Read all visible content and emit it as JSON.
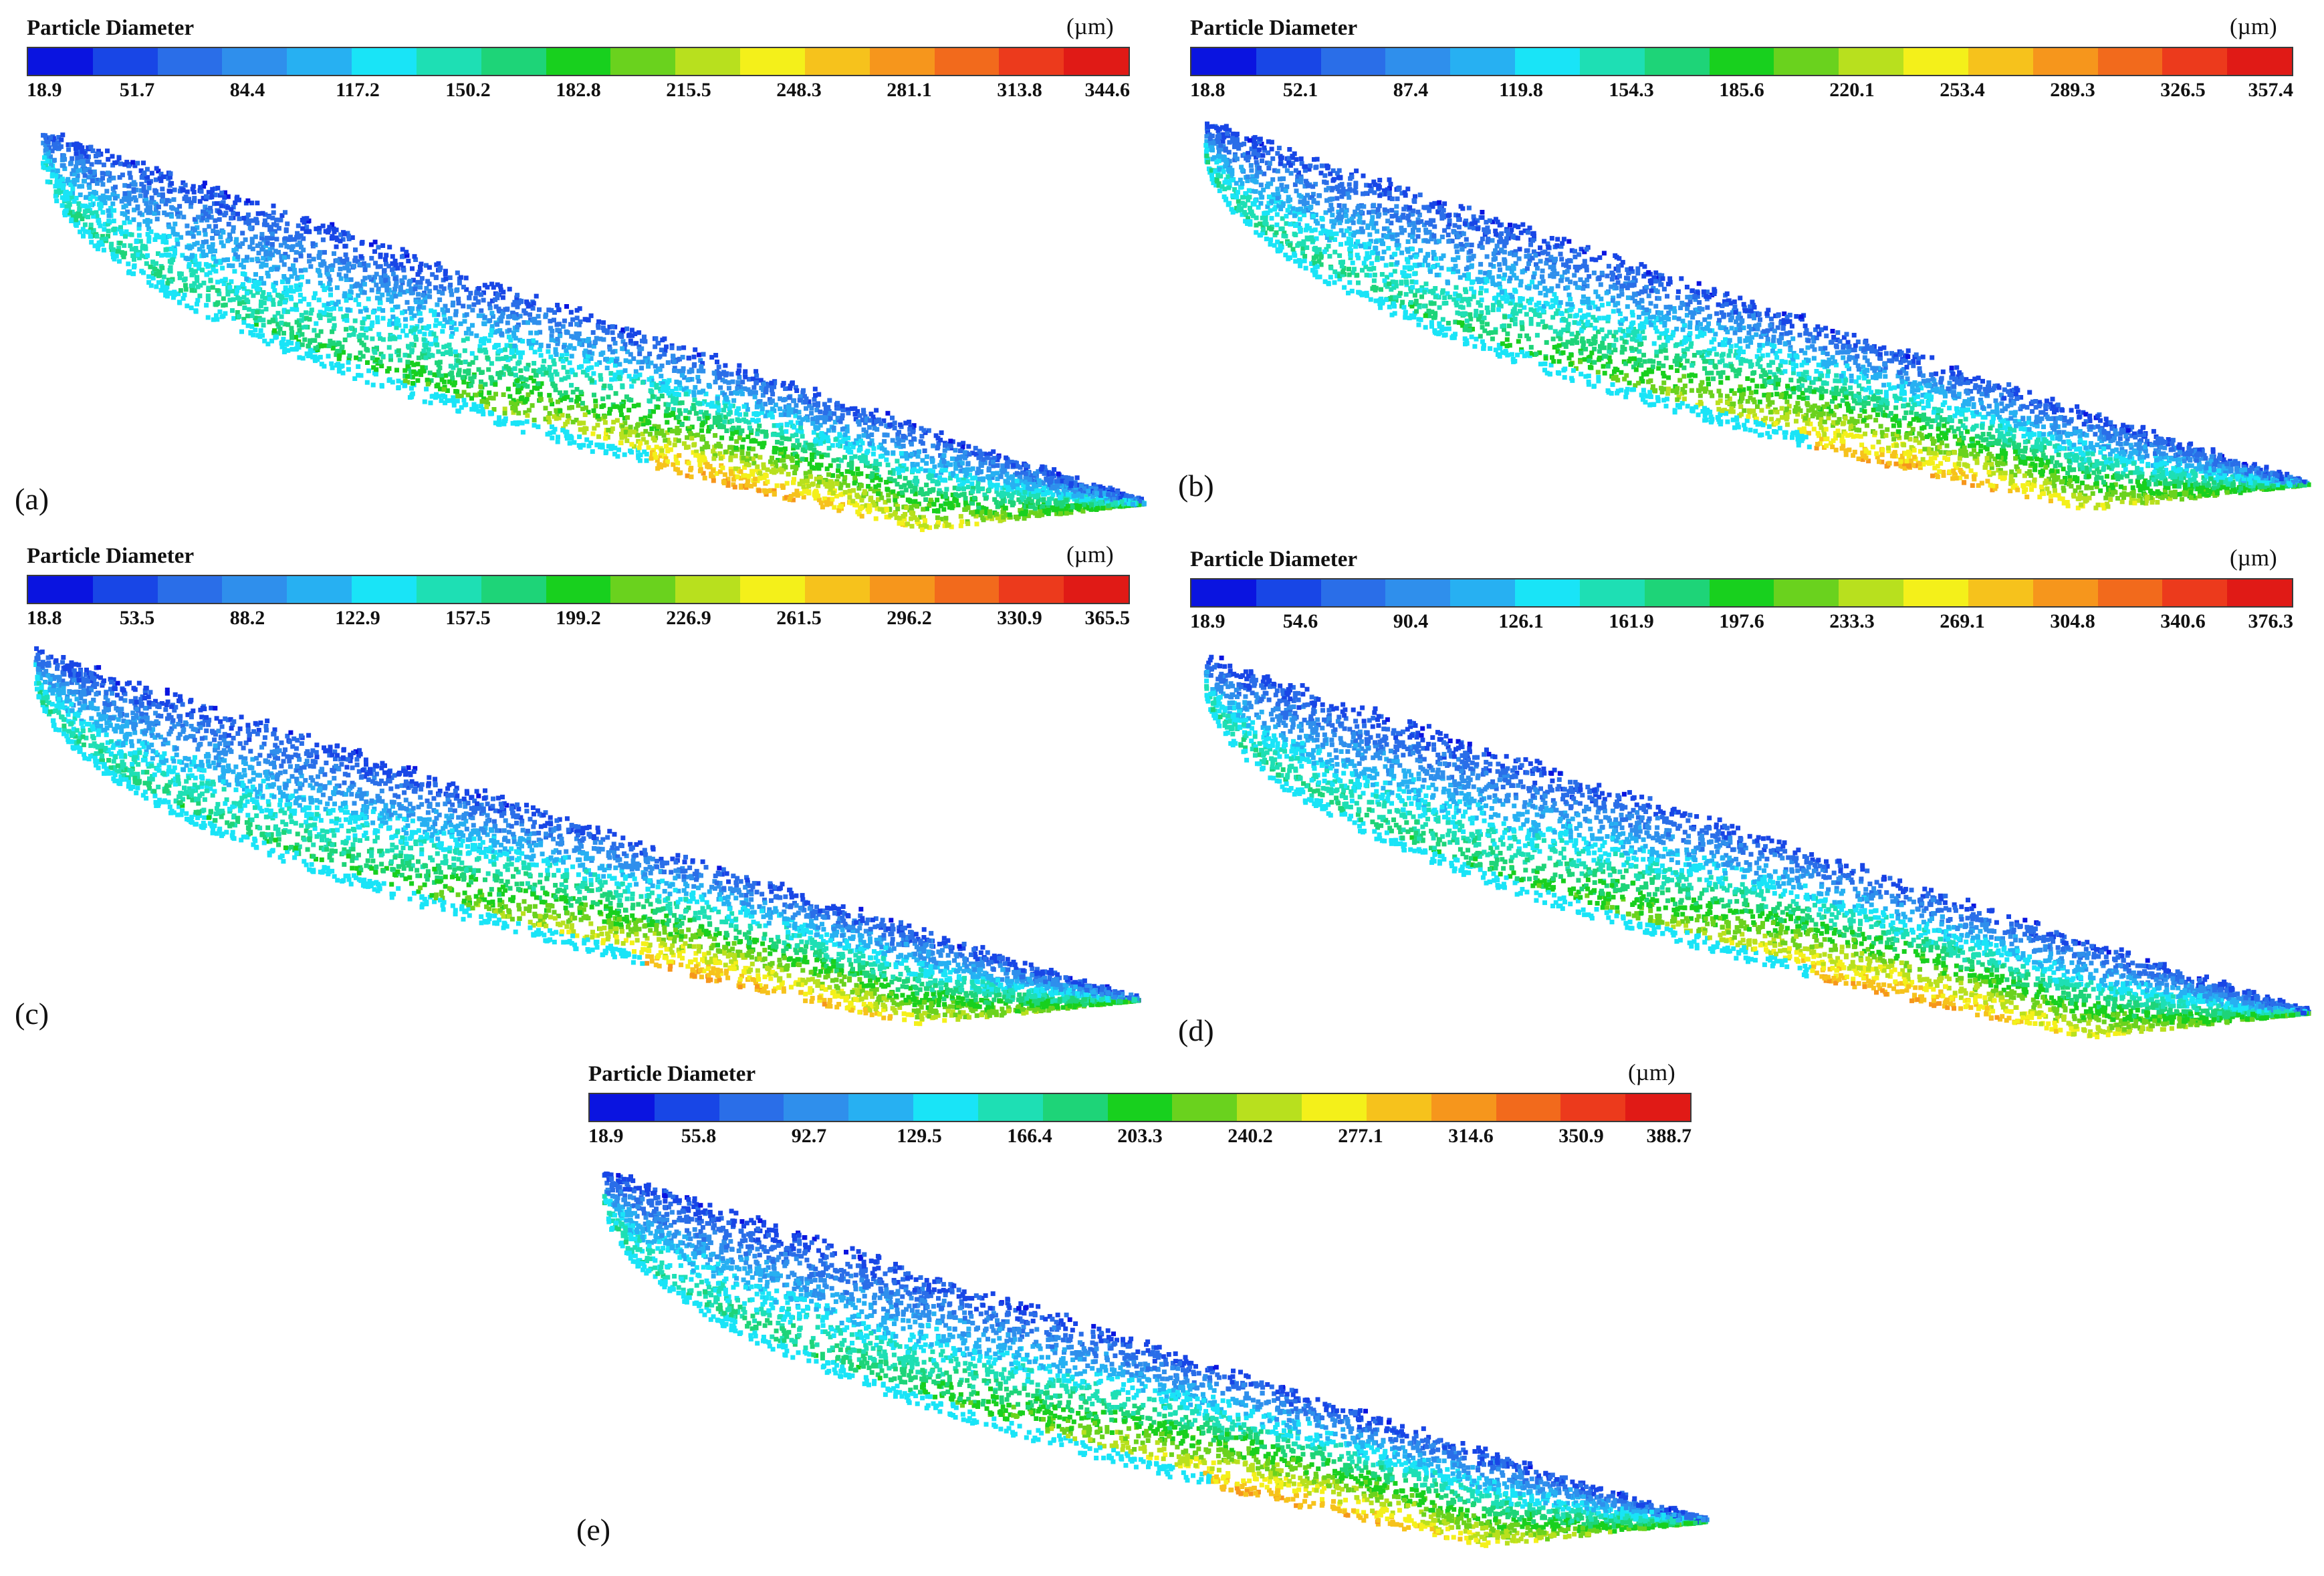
{
  "colorbar_title": "Particle Diameter",
  "colorbar_unit": "(µm)",
  "colormap": [
    "#0a14e0",
    "#1846e6",
    "#2a6ee8",
    "#2f8fec",
    "#27b0f2",
    "#19e4f7",
    "#1edfb4",
    "#1ed478",
    "#18d01e",
    "#6ad21e",
    "#b8e01e",
    "#f4f01a",
    "#f6c21c",
    "#f6961c",
    "#f26a1c",
    "#ec3a1c",
    "#e01a16"
  ],
  "panels": [
    {
      "label": "(a)",
      "ticks": [
        "18.9",
        "51.7",
        "84.4",
        "117.2",
        "150.2",
        "182.8",
        "215.5",
        "248.3",
        "281.1",
        "313.8",
        "344.6"
      ]
    },
    {
      "label": "(b)",
      "ticks": [
        "18.8",
        "52.1",
        "87.4",
        "119.8",
        "154.3",
        "185.6",
        "220.1",
        "253.4",
        "289.3",
        "326.5",
        "357.4"
      ]
    },
    {
      "label": "(c)",
      "ticks": [
        "18.8",
        "53.5",
        "88.2",
        "122.9",
        "157.5",
        "199.2",
        "226.9",
        "261.5",
        "296.2",
        "330.9",
        "365.5"
      ]
    },
    {
      "label": "(d)",
      "ticks": [
        "18.9",
        "54.6",
        "90.4",
        "126.1",
        "161.9",
        "197.6",
        "233.3",
        "269.1",
        "304.8",
        "340.6",
        "376.3"
      ]
    },
    {
      "label": "(e)",
      "ticks": [
        "18.9",
        "55.8",
        "92.7",
        "129.5",
        "166.4",
        "203.3",
        "240.2",
        "277.1",
        "314.6",
        "350.9",
        "388.7"
      ]
    }
  ]
}
